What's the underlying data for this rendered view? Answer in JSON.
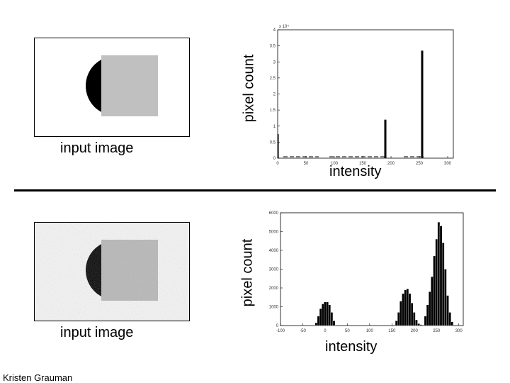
{
  "slide": {
    "credit": "Kristen Grauman",
    "colors": {
      "background": "#ffffff",
      "ink": "#000000",
      "gray_square": "#c0c0c0",
      "noise_bg": "#f2f2f2"
    }
  },
  "top": {
    "image_caption": "input image",
    "y_label": "pixel count",
    "x_label": "intensity",
    "multiplier_label": "x 10⁴",
    "chart_data": {
      "type": "bar",
      "title": "",
      "xlabel": "intensity",
      "ylabel": "pixel count",
      "xlim": [
        0,
        310
      ],
      "ylim": [
        0,
        4.0
      ],
      "y_scale_multiplier": 10000,
      "x_ticks": [
        0,
        50,
        100,
        150,
        200,
        250,
        300
      ],
      "y_ticks": [
        0,
        0.5,
        1,
        1.5,
        2,
        2.5,
        3,
        3.5,
        4
      ],
      "x_tick_labels": [
        "0",
        "50",
        "100",
        "150",
        "200",
        "250",
        "300"
      ],
      "y_tick_labels": [
        "0",
        "0.5",
        "1",
        "1.5",
        "2",
        "2.5",
        "3",
        "3.5",
        "4"
      ],
      "x": [
        0,
        190,
        255
      ],
      "values": [
        0.75,
        1.2,
        3.35
      ],
      "grid": false,
      "legend": "none"
    }
  },
  "bottom": {
    "image_caption": "input image",
    "y_label": "pixel count",
    "x_label": "intensity",
    "chart_data": {
      "type": "bar",
      "title": "",
      "xlabel": "intensity",
      "ylabel": "pixel count",
      "xlim": [
        -100,
        310
      ],
      "ylim": [
        0,
        6000
      ],
      "x_ticks": [
        -100,
        -50,
        0,
        50,
        100,
        150,
        200,
        250,
        300
      ],
      "y_ticks": [
        0,
        1000,
        2000,
        3000,
        4000,
        5000,
        6000
      ],
      "x_tick_labels": [
        "-100",
        "-50",
        "0",
        "50",
        "100",
        "150",
        "200",
        "250",
        "300"
      ],
      "y_tick_labels": [
        "0",
        "1000",
        "2000",
        "3000",
        "4000",
        "5000",
        "6000"
      ],
      "bin_width": 5,
      "x": [
        -20,
        -15,
        -10,
        -5,
        0,
        5,
        10,
        15,
        20,
        160,
        165,
        170,
        175,
        180,
        185,
        190,
        195,
        200,
        205,
        210,
        215,
        225,
        230,
        235,
        240,
        245,
        250,
        255,
        260,
        265,
        270,
        275,
        280,
        285
      ],
      "values": [
        150,
        500,
        900,
        1150,
        1250,
        1250,
        1100,
        700,
        250,
        250,
        700,
        1300,
        1700,
        1900,
        1950,
        1700,
        1200,
        700,
        300,
        100,
        50,
        500,
        1100,
        1800,
        2600,
        3700,
        4600,
        5500,
        5300,
        4400,
        3000,
        1600,
        700,
        200
      ],
      "grid": false,
      "legend": "none"
    }
  }
}
